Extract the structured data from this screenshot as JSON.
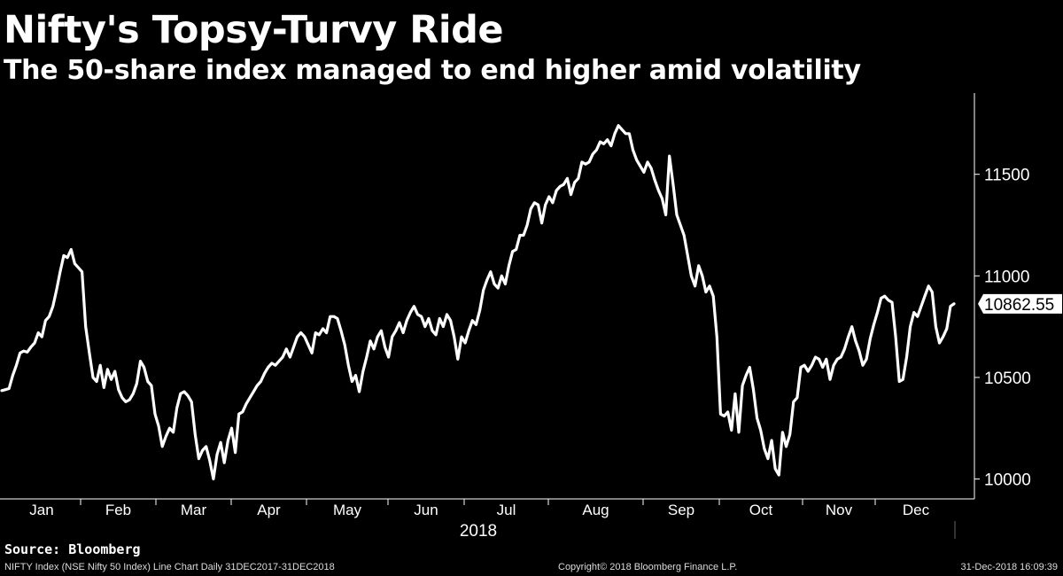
{
  "header": {
    "title": "Nifty's Topsy-Turvy Ride",
    "subtitle": "The 50-share index managed to end higher amid volatility"
  },
  "footer": {
    "source": "Source: Bloomberg",
    "description": "NIFTY Index (NSE Nifty 50 Index) Line Chart  Daily 31DEC2017-31DEC2018",
    "copyright": "Copyright© 2018 Bloomberg Finance L.P.",
    "timestamp": "31-Dec-2018 16:09:39"
  },
  "colors": {
    "background": "#000000",
    "line": "#ffffff",
    "axis": "#ffffff"
  },
  "chart_data": {
    "type": "line",
    "title": "Nifty's Topsy-Turvy Ride",
    "subtitle": "The 50-share index managed to end higher amid volatility",
    "x_axis_year_label": "2018",
    "x_tick_labels": [
      "Jan",
      "Feb",
      "Mar",
      "Apr",
      "May",
      "Jun",
      "Jul",
      "Aug",
      "Sep",
      "Oct",
      "Nov",
      "Dec"
    ],
    "y_tick_labels": [
      "11500",
      "11000",
      "10500",
      "10000"
    ],
    "y_ticks": [
      11500,
      11000,
      10500,
      10000
    ],
    "ylim": [
      9950,
      11900
    ],
    "y_axis_position": "right",
    "grid": false,
    "last_value_label": "10862.55",
    "last_value": 10862.55,
    "series": [
      {
        "values": [
          10435,
          10440,
          10445,
          10510,
          10560,
          10620,
          10630,
          10625,
          10650,
          10670,
          10720,
          10700,
          10780,
          10800,
          10850,
          10930,
          11020,
          11100,
          11090,
          11130,
          11060,
          11040,
          11020,
          10750,
          10620,
          10500,
          10480,
          10560,
          10450,
          10540,
          10490,
          10530,
          10440,
          10400,
          10380,
          10390,
          10420,
          10470,
          10580,
          10550,
          10480,
          10460,
          10320,
          10260,
          10160,
          10210,
          10250,
          10230,
          10350,
          10420,
          10430,
          10410,
          10380,
          10220,
          10100,
          10140,
          10160,
          10090,
          10000,
          10120,
          10180,
          10080,
          10190,
          10250,
          10130,
          10320,
          10330,
          10370,
          10400,
          10430,
          10460,
          10480,
          10520,
          10550,
          10570,
          10560,
          10580,
          10600,
          10640,
          10600,
          10650,
          10700,
          10720,
          10700,
          10660,
          10620,
          10720,
          10710,
          10740,
          10720,
          10800,
          10800,
          10790,
          10730,
          10660,
          10560,
          10480,
          10510,
          10430,
          10530,
          10600,
          10680,
          10640,
          10700,
          10730,
          10650,
          10600,
          10700,
          10730,
          10770,
          10720,
          10780,
          10820,
          10850,
          10810,
          10800,
          10750,
          10790,
          10730,
          10710,
          10790,
          10750,
          10810,
          10780,
          10700,
          10590,
          10700,
          10670,
          10730,
          10780,
          10760,
          10830,
          10930,
          10980,
          11020,
          10960,
          10940,
          11000,
          10960,
          11050,
          11120,
          11130,
          11200,
          11200,
          11250,
          11330,
          11360,
          11350,
          11260,
          11350,
          11390,
          11360,
          11420,
          11440,
          11450,
          11480,
          11400,
          11460,
          11480,
          11560,
          11550,
          11560,
          11600,
          11620,
          11660,
          11650,
          11670,
          11640,
          11700,
          11740,
          11720,
          11700,
          11700,
          11620,
          11570,
          11540,
          11510,
          11560,
          11530,
          11470,
          11420,
          11380,
          11300,
          11590,
          11450,
          11300,
          11250,
          11200,
          11100,
          11000,
          10950,
          11050,
          11000,
          10920,
          10950,
          10900,
          10700,
          10320,
          10310,
          10330,
          10240,
          10420,
          10230,
          10460,
          10510,
          10550,
          10440,
          10300,
          10240,
          10150,
          10100,
          10190,
          10050,
          10020,
          10230,
          10160,
          10220,
          10380,
          10400,
          10550,
          10560,
          10530,
          10560,
          10600,
          10590,
          10550,
          10590,
          10490,
          10560,
          10590,
          10600,
          10640,
          10700,
          10750,
          10680,
          10630,
          10560,
          10590,
          10690,
          10760,
          10820,
          10890,
          10900,
          10880,
          10870,
          10700,
          10480,
          10490,
          10600,
          10750,
          10820,
          10800,
          10850,
          10900,
          10950,
          10920,
          10750,
          10670,
          10700,
          10740,
          10850,
          10862.55
        ]
      }
    ]
  }
}
